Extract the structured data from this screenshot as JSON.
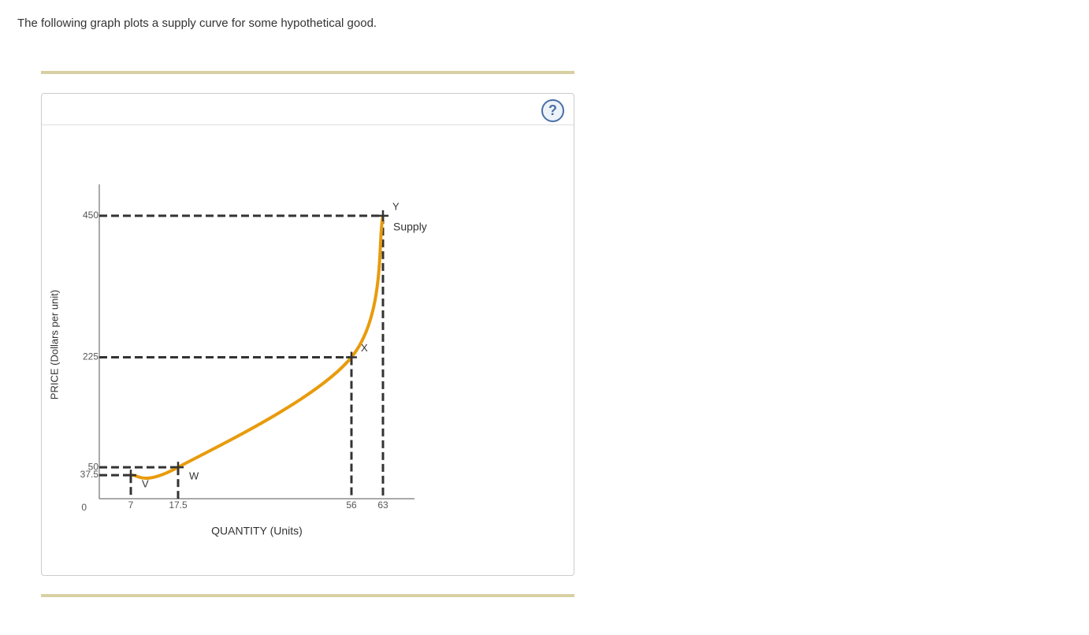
{
  "intro": "The following graph plots a supply curve for some hypothetical good.",
  "help": "?",
  "chart_data": {
    "type": "line",
    "x_label": "QUANTITY (Units)",
    "y_label": "PRICE (Dollars per unit)",
    "xlim": [
      0,
      70
    ],
    "ylim": [
      0,
      500
    ],
    "xticks": [
      7,
      17.5,
      56,
      63
    ],
    "yticks": [
      0,
      37.5,
      50,
      225,
      450
    ],
    "series": [
      {
        "name": "Supply",
        "color": "#e89b0c",
        "x": [
          7,
          17.5,
          56,
          63
        ],
        "values": [
          37.5,
          50,
          225,
          450
        ],
        "point_labels": [
          "V",
          "W",
          "X",
          "Y"
        ]
      }
    ]
  }
}
